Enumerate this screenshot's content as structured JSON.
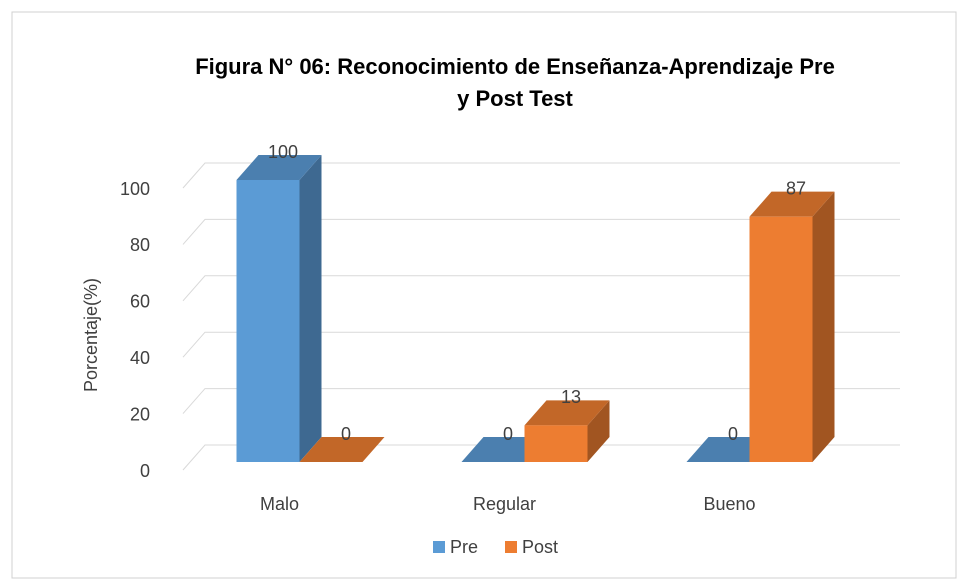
{
  "chart_data": {
    "type": "bar",
    "title": "Figura N° 06: Reconocimiento de Enseñanza-Aprendizaje Pre y Post Test",
    "y_label": "Porcentaje(%)",
    "categories": [
      "Malo",
      "Regular",
      "Bueno"
    ],
    "series": [
      {
        "name": "Pre",
        "color": "#5b9bd5",
        "values": [
          100,
          0,
          0
        ]
      },
      {
        "name": "Post",
        "color": "#ed7d31",
        "values": [
          0,
          13,
          87
        ]
      }
    ],
    "ylim": [
      0,
      100
    ],
    "yticks": [
      0,
      20,
      40,
      60,
      80,
      100
    ],
    "grid": true,
    "legend": "bottom"
  }
}
